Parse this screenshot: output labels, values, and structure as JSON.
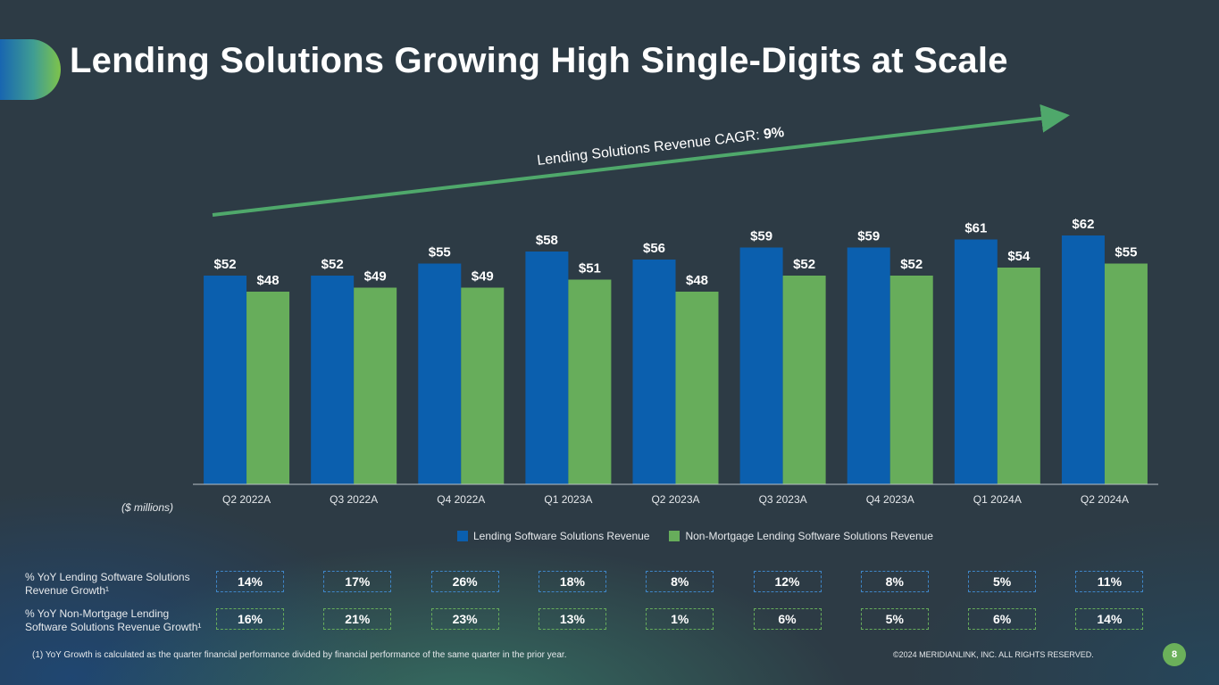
{
  "page_title": "Lending Solutions Growing High Single-Digits at Scale",
  "cagr_label": "Lending Solutions Revenue CAGR:",
  "cagr_value": "9%",
  "units_label": "($ millions)",
  "colors": {
    "lending": "#0b5fae",
    "non_mortgage": "#67ad5b",
    "cagr_arrow": "#4fa86b"
  },
  "chart_data": {
    "type": "bar",
    "title": "Lending Solutions Growing High Single-Digits at Scale",
    "categories": [
      "Q2 2022A",
      "Q3 2022A",
      "Q4 2022A",
      "Q1 2023A",
      "Q2 2023A",
      "Q3 2023A",
      "Q4 2023A",
      "Q1 2024A",
      "Q2 2024A"
    ],
    "series": [
      {
        "name": "Lending Software Solutions Revenue",
        "values": [
          52,
          52,
          55,
          58,
          56,
          59,
          59,
          61,
          62
        ],
        "labels": [
          "$52",
          "$52",
          "$55",
          "$58",
          "$56",
          "$59",
          "$59",
          "$61",
          "$62"
        ]
      },
      {
        "name": "Non-Mortgage Lending Software Solutions Revenue",
        "values": [
          48,
          49,
          49,
          51,
          48,
          52,
          52,
          54,
          55
        ],
        "labels": [
          "$48",
          "$49",
          "$49",
          "$51",
          "$48",
          "$52",
          "$52",
          "$54",
          "$55"
        ]
      }
    ],
    "ylabel": "($ millions)",
    "ylim": [
      0,
      70
    ],
    "legend": "bottom"
  },
  "growth_rows": [
    {
      "label": "% YoY Lending Software Solutions Revenue Growth¹",
      "values": [
        "14%",
        "17%",
        "26%",
        "18%",
        "8%",
        "12%",
        "8%",
        "5%",
        "11%"
      ]
    },
    {
      "label": "% YoY Non-Mortgage Lending Software Solutions Revenue Growth¹",
      "values": [
        "16%",
        "21%",
        "23%",
        "13%",
        "1%",
        "6%",
        "5%",
        "6%",
        "14%"
      ]
    }
  ],
  "footnote": "(1) YoY Growth is calculated as the quarter financial performance divided by financial performance of the same quarter in the prior year.",
  "copyright": "©2024 MERIDIANLINK, INC. ALL RIGHTS RESERVED.",
  "page_number": "8"
}
